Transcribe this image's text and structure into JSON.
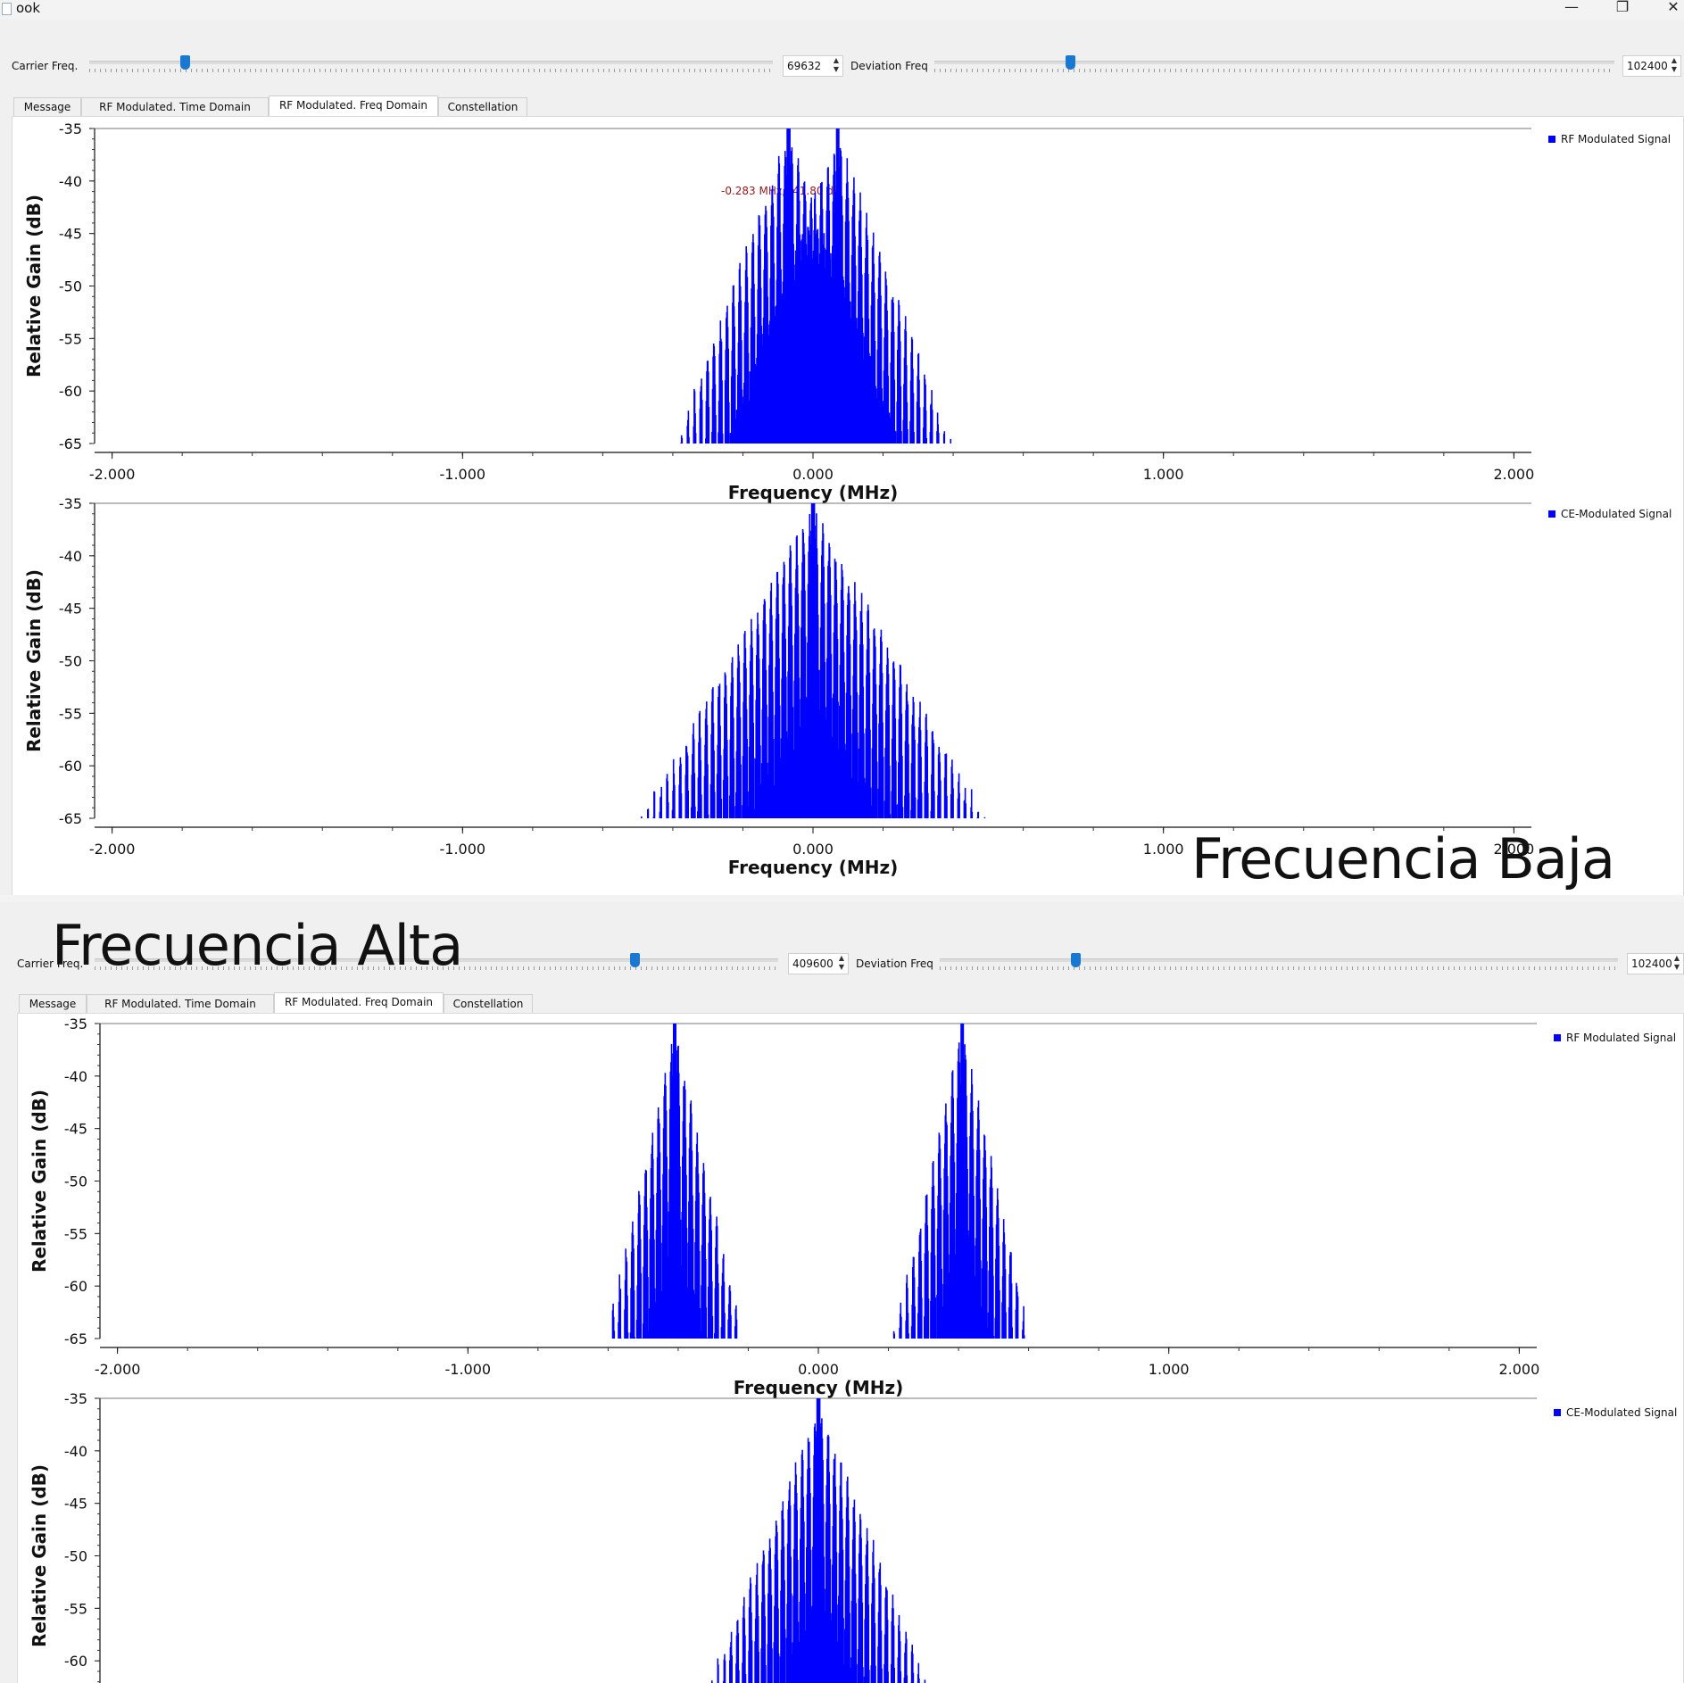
{
  "windows": [
    {
      "title": "ook",
      "carrier_label": "Carrier Freq.",
      "carrier_value": "69632",
      "carrier_slider_fraction": 0.14,
      "deviation_label": "Deviation Freq",
      "deviation_value": "102400",
      "deviation_slider_fraction": 0.2,
      "tabs": [
        "Message",
        "RF Modulated. Time Domain",
        "RF Modulated. Freq Domain",
        "Constellation"
      ],
      "active_tab": 2,
      "marker_text": "-0.283 MHz, -41.80 dB",
      "plots": [
        {
          "legend": "RF Modulated Signal",
          "ylabel": "Relative Gain (dB)",
          "xlabel": "Frequency (MHz)"
        },
        {
          "legend": "CE-Modulated Signal",
          "ylabel": "Relative Gain (dB)",
          "xlabel": "Frequency (MHz)"
        }
      ]
    },
    {
      "title": "ook",
      "carrier_label": "Carrier Freq.",
      "carrier_value": "409600",
      "carrier_slider_fraction": 0.79,
      "deviation_label": "Deviation Freq",
      "deviation_value": "102400",
      "deviation_slider_fraction": 0.2,
      "tabs": [
        "Message",
        "RF Modulated. Time Domain",
        "RF Modulated. Freq Domain",
        "Constellation"
      ],
      "active_tab": 2,
      "plots": [
        {
          "legend": "RF Modulated Signal",
          "ylabel": "Relative Gain (dB)",
          "xlabel": "Frequency (MHz)"
        },
        {
          "legend": "CE-Modulated Signal",
          "ylabel": "Relative Gain (dB)",
          "xlabel": ""
        }
      ]
    }
  ],
  "annotations": {
    "low": "Frecuencia Baja",
    "high": "Frecuencia Alta"
  },
  "chart_data": [
    {
      "type": "line",
      "title": "",
      "series": [
        {
          "name": "RF Modulated Signal",
          "description_of_shape": "two peaks near ±0.07 MHz reaching -35 dB"
        }
      ],
      "xlabel": "Frequency (MHz)",
      "ylabel": "Relative Gain (dB)",
      "xlim": [
        -2.05,
        2.05
      ],
      "ylim": [
        -65,
        -35
      ],
      "x_ticks": [
        "-2.000",
        "-1.000",
        "0.000",
        "1.000",
        "2.000"
      ],
      "y_ticks": [
        "-35",
        "-40",
        "-45",
        "-50",
        "-55",
        "-60",
        "-65"
      ],
      "peaks": [
        {
          "x": -0.07,
          "y": -35
        },
        {
          "x": 0.07,
          "y": -35
        }
      ],
      "spread": 0.33,
      "color": "#0000ff"
    },
    {
      "type": "line",
      "title": "",
      "series": [
        {
          "name": "CE-Modulated Signal"
        }
      ],
      "xlabel": "Frequency (MHz)",
      "ylabel": "Relative Gain (dB)",
      "xlim": [
        -2.05,
        2.05
      ],
      "ylim": [
        -65,
        -35
      ],
      "x_ticks": [
        "-2.000",
        "-1.000",
        "0.000",
        "1.000",
        "2.000"
      ],
      "y_ticks": [
        "-35",
        "-40",
        "-45",
        "-50",
        "-55",
        "-60",
        "-65"
      ],
      "peaks": [
        {
          "x": 0.0,
          "y": -35
        }
      ],
      "spread": 0.5,
      "color": "#0000ff"
    },
    {
      "type": "line",
      "title": "",
      "series": [
        {
          "name": "RF Modulated Signal"
        }
      ],
      "xlabel": "Frequency (MHz)",
      "ylabel": "Relative Gain (dB)",
      "xlim": [
        -2.05,
        2.05
      ],
      "ylim": [
        -65,
        -35
      ],
      "x_ticks": [
        "-2.000",
        "-1.000",
        "0.000",
        "1.000",
        "2.000"
      ],
      "y_ticks": [
        "-35",
        "-40",
        "-45",
        "-50",
        "-55",
        "-60",
        "-65"
      ],
      "peaks": [
        {
          "x": -0.41,
          "y": -35
        },
        {
          "x": 0.41,
          "y": -35
        }
      ],
      "spread": 0.2,
      "color": "#0000ff"
    },
    {
      "type": "line",
      "title": "",
      "series": [
        {
          "name": "CE-Modulated Signal"
        }
      ],
      "xlabel": "",
      "ylabel": "Relative Gain (dB)",
      "xlim": [
        -2.05,
        2.05
      ],
      "ylim": [
        -65,
        -35
      ],
      "x_ticks": [],
      "y_ticks": [
        "-35",
        "-40",
        "-45",
        "-50",
        "-55",
        "-60"
      ],
      "peaks": [
        {
          "x": 0.0,
          "y": -35
        }
      ],
      "spread": 0.35,
      "color": "#0000ff"
    }
  ]
}
